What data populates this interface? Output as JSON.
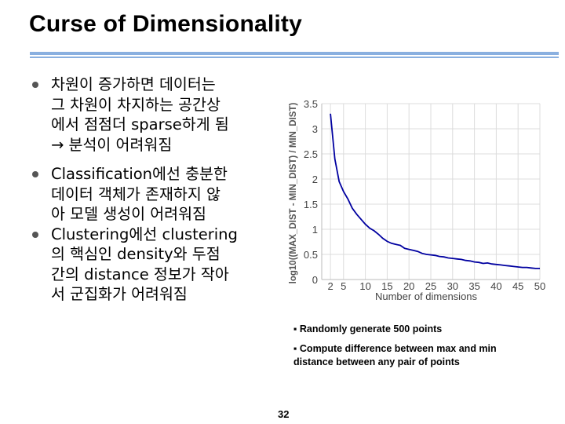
{
  "slide": {
    "title": "Curse of Dimensionality",
    "page_number": "32",
    "bullets": [
      {
        "lines": [
          "차원이 증가하면 데이터는",
          "그 차원이 차지하는 공간상",
          "에서 점점더 sparse하게 됨",
          "→ 분석이 어려워짐"
        ]
      },
      {
        "lines": [
          "Classification에선 충분한",
          "데이터 객체가 존재하지 않",
          "아 모델 생성이 어려워짐"
        ]
      },
      {
        "lines": [
          "Clustering에선 clustering",
          "의 핵심인 density와 두점",
          "간의 distance 정보가 작아",
          "서 군집화가 어려워짐"
        ]
      }
    ],
    "notes": [
      "▪ Randomly generate 500 points",
      "▪ Compute difference between max and min distance between any pair of points"
    ]
  },
  "chart_data": {
    "type": "line",
    "title": "",
    "xlabel": "Number of dimensions",
    "ylabel": "log10((MAX_DIST - MIN_DIST) / MIN_DIST)",
    "xlim": [
      0,
      50
    ],
    "ylim": [
      0,
      3.5
    ],
    "xticks": [
      "2",
      "5",
      "10",
      "15",
      "20",
      "25",
      "30",
      "35",
      "40",
      "45",
      "50"
    ],
    "yticks": [
      "0",
      "0.5",
      "1",
      "1.5",
      "2",
      "2.5",
      "3",
      "3.5"
    ],
    "grid": true,
    "line_color": "#0000a0",
    "x": [
      2,
      3,
      4,
      5,
      6,
      7,
      8,
      9,
      10,
      11,
      12,
      13,
      14,
      15,
      16,
      17,
      18,
      19,
      20,
      21,
      22,
      23,
      24,
      25,
      26,
      27,
      28,
      29,
      30,
      31,
      32,
      33,
      34,
      35,
      36,
      37,
      38,
      39,
      40,
      41,
      42,
      43,
      44,
      45,
      46,
      47,
      48,
      49,
      50
    ],
    "values": [
      3.3,
      2.4,
      1.95,
      1.75,
      1.6,
      1.42,
      1.3,
      1.2,
      1.1,
      1.02,
      0.97,
      0.9,
      0.82,
      0.76,
      0.72,
      0.7,
      0.68,
      0.62,
      0.6,
      0.58,
      0.56,
      0.52,
      0.5,
      0.49,
      0.48,
      0.46,
      0.45,
      0.43,
      0.42,
      0.41,
      0.4,
      0.38,
      0.37,
      0.35,
      0.34,
      0.32,
      0.33,
      0.31,
      0.3,
      0.29,
      0.28,
      0.27,
      0.26,
      0.25,
      0.24,
      0.24,
      0.23,
      0.22,
      0.22
    ]
  }
}
